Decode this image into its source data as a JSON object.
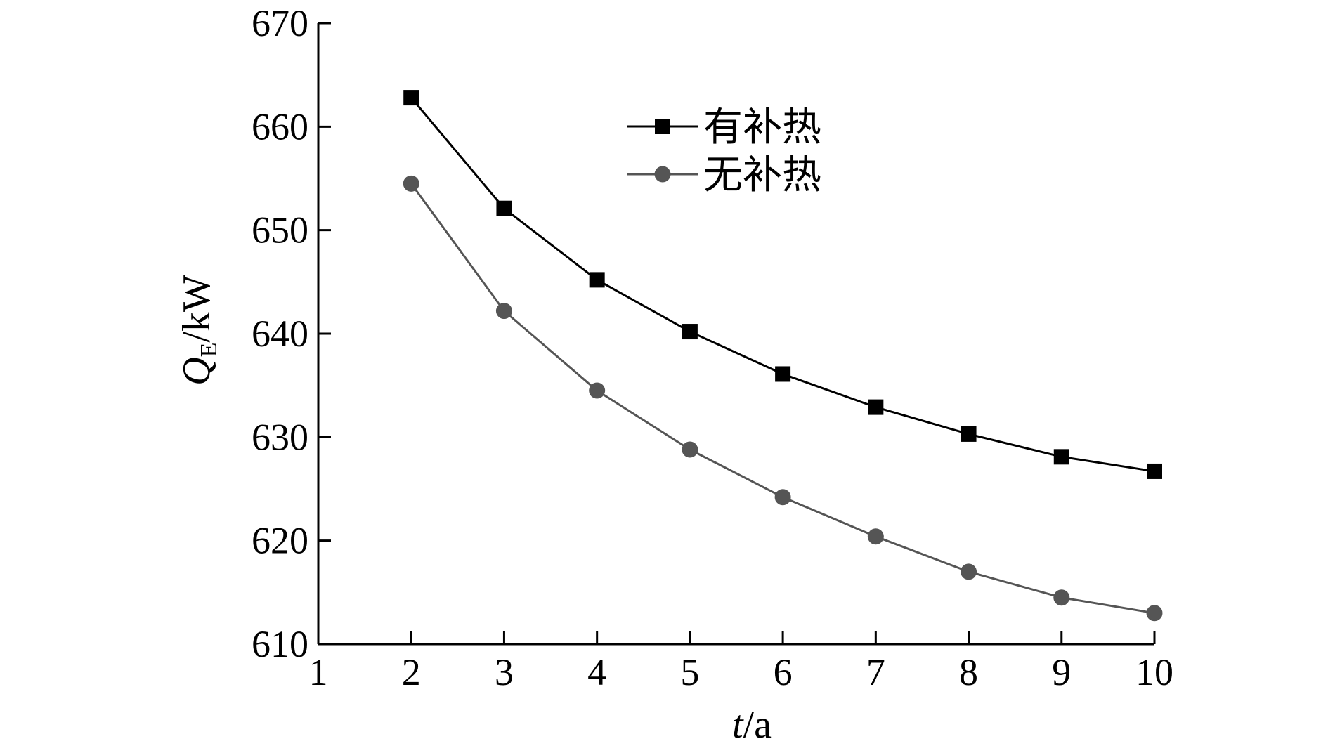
{
  "chart_data": {
    "type": "line",
    "x": [
      2,
      3,
      4,
      5,
      6,
      7,
      8,
      9,
      10
    ],
    "series": [
      {
        "name": "有补热",
        "marker": "square",
        "color": "#000000",
        "values": [
          662.8,
          652.1,
          645.2,
          640.2,
          636.1,
          632.9,
          630.3,
          628.1,
          626.7
        ]
      },
      {
        "name": "无补热",
        "marker": "circle",
        "color": "#555555",
        "values": [
          654.5,
          642.2,
          634.5,
          628.8,
          624.2,
          620.4,
          617.0,
          614.5,
          613.0
        ]
      }
    ],
    "xlim": [
      1,
      10
    ],
    "ylim": [
      610,
      670
    ],
    "xticks": [
      1,
      2,
      3,
      4,
      5,
      6,
      7,
      8,
      9,
      10
    ],
    "yticks": [
      610,
      620,
      630,
      640,
      650,
      660,
      670
    ],
    "xlabel": {
      "var": "t",
      "unit": "/a"
    },
    "ylabel": {
      "var": "Q",
      "sub": "E",
      "unit": "/kW"
    },
    "grid": false,
    "legend_position": "top-center"
  }
}
